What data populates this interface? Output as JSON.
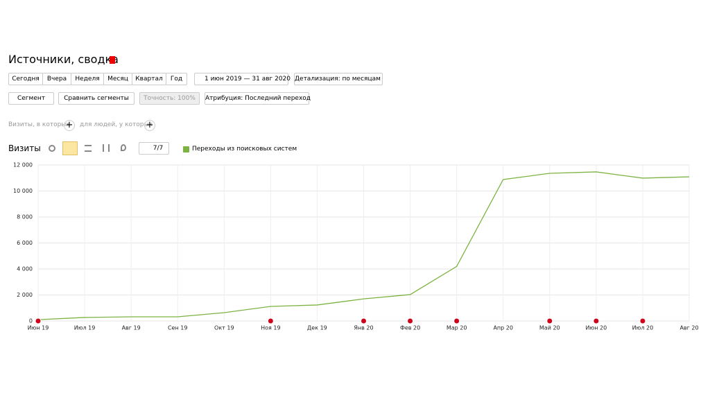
{
  "header": {
    "title": "Источники, сводка"
  },
  "periods": [
    "Сегодня",
    "Вчера",
    "Неделя",
    "Месяц",
    "Квартал",
    "Год"
  ],
  "date_range": "1 июн 2019 — 31 авг 2020",
  "detail": "Детализация: по месяцам",
  "filters": {
    "segment": "Сегмент",
    "compare": "Сравнить сегменты",
    "accuracy": "Точность: 100%",
    "attribution": "Атрибуция: Последний переход"
  },
  "conditions": {
    "visits": "Визиты, в которых",
    "people": "для людей, у которых"
  },
  "chart_header": {
    "metric": "Визиты",
    "counter": "7/7"
  },
  "chart_data": {
    "type": "line",
    "x": [
      "Июн 19",
      "Июл 19",
      "Авг 19",
      "Сен 19",
      "Окт 19",
      "Ноя 19",
      "Дек 19",
      "Янв 20",
      "Фев 20",
      "Мар 20",
      "Апр 20",
      "Май 20",
      "Июн 20",
      "Июл 20",
      "Авг 20"
    ],
    "series": [
      {
        "name": "Переходы из поисковых систем",
        "color": "#7cb342",
        "values": [
          100,
          270,
          320,
          320,
          640,
          1120,
          1230,
          1700,
          2030,
          4200,
          10880,
          11360,
          11470,
          10990,
          11090
        ]
      }
    ],
    "ylim": [
      0,
      12000
    ],
    "yticks": [
      0,
      {
        "value": 2000,
        "label": "2 000"
      },
      {
        "value": 4000,
        "label": "4 000"
      },
      {
        "value": 6000,
        "label": "6 000"
      },
      {
        "value": 8000,
        "label": "8 000"
      },
      {
        "value": 10000,
        "label": "10 000"
      },
      {
        "value": 12000,
        "label": "12 000"
      }
    ],
    "grid": true
  }
}
